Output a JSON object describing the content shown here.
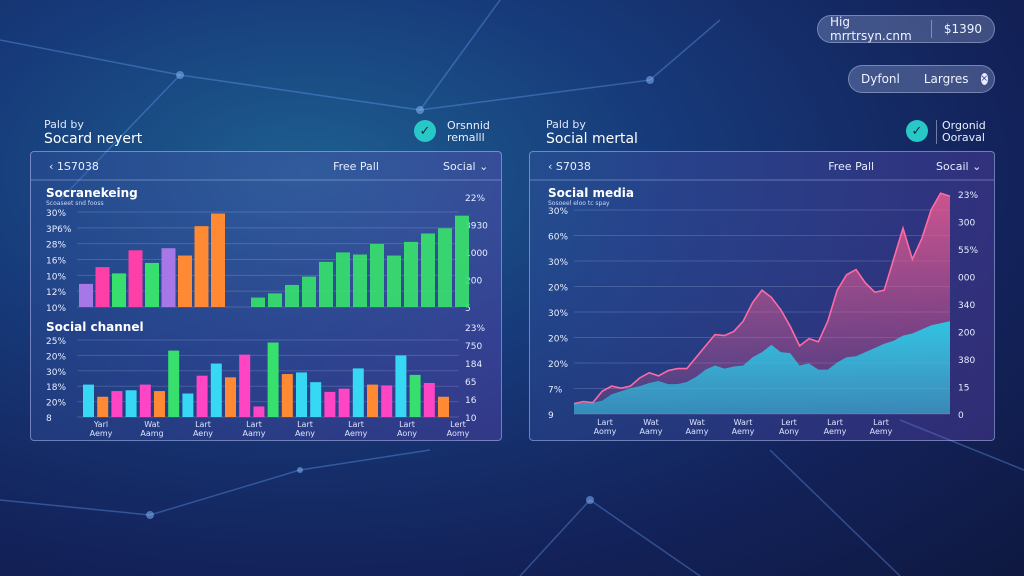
{
  "top_pills": {
    "left": {
      "email": "Hig mrrtrsyn.cnm",
      "amount": "$1390"
    },
    "right": {
      "a": "Dyfonl",
      "b": "Largres"
    }
  },
  "panels": [
    {
      "head_small": "Pald by",
      "head_big": "Socard neyert",
      "stat_line1": "Orsnnid",
      "stat_line2": "remalll",
      "toolbar": {
        "date": "‹ 1S7038",
        "mid": "Free Pall",
        "dropdown": "Social"
      }
    },
    {
      "head_small": "Pald by",
      "head_big": "Social mertal",
      "stat_line1": "Orgonid",
      "stat_line2": "Ooraval",
      "toolbar": {
        "date": "‹ S7038",
        "mid": "Free Pall",
        "dropdown": "Socail"
      }
    }
  ],
  "colors": {
    "purple": "#a777e8",
    "pink": "#ff3fa8",
    "green": "#37df6c",
    "orange": "#ff8a33",
    "cyan": "#37d8f3",
    "magenta": "#ff44c4",
    "lime": "#7af05d",
    "teal": "#2bc9e6",
    "rose": "#e65a92"
  },
  "chart_data": [
    {
      "type": "bar",
      "title": "Socranekeing",
      "subtitle": "Scoaseet snd fooss",
      "y_left_ticks": [
        "30%",
        "3P6%",
        "28%",
        "16%",
        "10%",
        "12%",
        "10%"
      ],
      "y_right_ticks": [
        "22%",
        "3930",
        "1000",
        "200",
        "5"
      ],
      "series": [
        {
          "values": [
            22,
            38,
            32,
            54,
            42,
            56,
            49,
            77,
            89
          ],
          "colors": [
            "#a777e8",
            "#ff3fa8",
            "#37df6c",
            "#ff3fa8",
            "#37df6c",
            "#a777e8",
            "#ff8a33",
            "#ff8a33",
            "#ff8a33"
          ]
        },
        {
          "values": [
            9,
            13,
            21,
            29,
            43,
            52,
            50,
            60,
            49,
            62,
            70,
            75,
            87
          ],
          "colors": [
            "#37df6c"
          ]
        }
      ]
    },
    {
      "type": "bar",
      "title": "Social channel",
      "y_left_ticks": [
        "25%",
        "20%",
        "30%",
        "18%",
        "20%",
        "8"
      ],
      "y_right_ticks": [
        "23%",
        "750",
        "184",
        "65",
        "16",
        "10"
      ],
      "x_tick_labels": [
        "Yarl\nAemy",
        "Wat\nAamg",
        "Lart\nAeny",
        "Lart\nAamy",
        "Lart\nAeny",
        "Lart\nAemy",
        "Lart\nAony",
        "Lert\nAomy"
      ],
      "values": [
        40,
        25,
        32,
        33,
        40,
        32,
        82,
        29,
        51,
        66,
        49,
        77,
        13,
        92,
        53,
        55,
        43,
        31,
        35,
        60,
        40,
        39,
        76,
        52,
        42,
        25
      ],
      "colors": [
        "#37d8f3",
        "#ff8a33",
        "#ff44c4",
        "#37d8f3",
        "#ff44c4",
        "#ff8a33",
        "#37df6c",
        "#37d8f3",
        "#ff44c4",
        "#37d8f3",
        "#ff8a33",
        "#ff44c4",
        "#ff44c4",
        "#37df6c",
        "#ff8a33",
        "#37d8f3",
        "#37d8f3",
        "#ff44c4",
        "#ff44c4",
        "#37d8f3",
        "#ff8a33",
        "#ff44c4",
        "#37d8f3",
        "#37df6c",
        "#ff44c4",
        "#ff8a33"
      ]
    },
    {
      "type": "area",
      "title": "Social media",
      "subtitle": "Sosoeel eloo tc spay",
      "y_left_ticks": [
        "30%",
        "60%",
        "30%",
        "20%",
        "30%",
        "20%",
        "20%",
        "7%",
        "9"
      ],
      "y_right_ticks": [
        "23%",
        "300",
        "55%",
        "000",
        "340",
        "200",
        "380",
        "15",
        "0"
      ],
      "x_tick_labels": [
        "Lart\nAomy",
        "Wat\nAamy",
        "Wat\nAamy",
        "Wart\nAemy",
        "Lert\nAony",
        "Lart\nAemy",
        "Lart\nAemy"
      ],
      "series": [
        {
          "values": [
            10,
            12,
            11,
            22,
            27,
            25,
            27,
            35,
            40,
            37,
            42,
            44,
            44,
            55,
            66,
            77,
            76,
            80,
            90,
            108,
            120,
            113,
            101,
            85,
            66,
            73,
            70,
            90,
            120,
            135,
            140,
            127,
            118,
            120,
            150,
            180,
            150,
            170,
            198,
            214,
            211
          ],
          "color": "#e65a92"
        },
        {
          "values": [
            10,
            11,
            11,
            13,
            19,
            22,
            25,
            27,
            30,
            32,
            29,
            29,
            31,
            36,
            43,
            47,
            44,
            46,
            47,
            55,
            60,
            67,
            60,
            59,
            47,
            49,
            43,
            43,
            50,
            55,
            56,
            60,
            64,
            68,
            71,
            76,
            78,
            82,
            86,
            88,
            90
          ],
          "color": "#2bc9e6"
        }
      ]
    }
  ]
}
